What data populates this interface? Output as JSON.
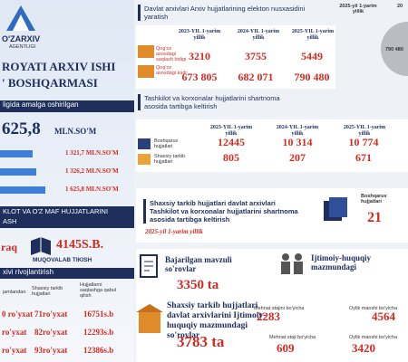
{
  "left": {
    "logo": "O'ZARXIV",
    "logo_sub": "AGENTLIGI",
    "title": [
      "ROYATI ARXIV ISHI",
      "' BOSHQARMASI"
    ],
    "subtitle": "ligida amalga oshirilgan",
    "total": "625,8",
    "total_unit": "MLN.SO'M",
    "bars": [
      "1 321,7 MLN.SO'M",
      "1 326,2 MLN.SO'M",
      "1 625,8 MLN.SO'M"
    ],
    "band1": [
      "KLOT VA O'Z MAF HUJJATLARINI",
      "ASH"
    ],
    "binding": {
      "prefix": "raq",
      "value": "4145S.B.",
      "label": "MUQOVALAB TIKISH"
    },
    "band2": "xivi rivojlantirish",
    "table": {
      "headers": [
        "jamlandan",
        "Shaxsiy tarkib hujjatlari",
        "Hujjatlarni saqlashga qabul qilish"
      ],
      "rows": [
        [
          "0 ro'yxat",
          "71ro'yxat",
          "16751s.b"
        ],
        [
          "ro'yxat",
          "82ro'yxat",
          "12293s.b"
        ],
        [
          "ro'yxat",
          "93ro'yxat",
          "12386s.b"
        ]
      ]
    }
  },
  "digitization": {
    "title": "Davlat arxivlari Arxiv hujjatlarining elekton nusxasidini yaratish",
    "years": [
      "2023-YIL 1-yarim yillik",
      "2024-YIL 1-yarim yillik",
      "2025-YIL 1-yarim yillik"
    ],
    "rows": [
      {
        "label": "Qog'oz asosdagi saqlash birligi",
        "values": [
          "3210",
          "3755",
          "5449"
        ]
      },
      {
        "label": "Qog'oz asosdagi kadr",
        "values": [
          "673 805",
          "682 071",
          "790 480"
        ]
      }
    ],
    "side": {
      "legend": [
        "2025-yil 1-yarim yillik",
        "20"
      ],
      "value": "790 480"
    }
  },
  "contracts": {
    "title": "Tashkilot va korxonalar hujjatlarini shartnoma asosida tartibga keltirish",
    "years": [
      "2023-YIL 1-yarim yillik",
      "2024-YIL 1-yarim yillik",
      "2025-YIL 1-yarim yillik"
    ],
    "rows": [
      {
        "label": "Boshqaruv hujjatlari",
        "values": [
          "12445",
          "10 314",
          "10 774"
        ]
      },
      {
        "label": "Shaxsiy tarkib hujjatlari",
        "values": [
          "805",
          "207",
          "671"
        ]
      }
    ]
  },
  "personnel": {
    "title": "Shaxsiy tarkib hujjatlari davlat arxivlari Tashkilot va korxonalar hujjatlarini shartnoma asosida tartibga keltirish",
    "period": "2025-yil 1-yarim yillik",
    "label": "Boshqaruv hujjatlari",
    "value": "21"
  },
  "requests": {
    "thematic": {
      "label": "Bajarilgan mavzuli so'rovlar",
      "value": "3350 ta"
    },
    "social": {
      "label": "Ijtimoiy-huquqiy mazmundagi",
      "items": [
        {
          "label": "Mehnat stajini bo'yicha",
          "value": "2283"
        },
        {
          "label": "Oylik maoshi bo'yicha",
          "value": "4564"
        }
      ]
    },
    "archives": {
      "label": "Shaxsiy tarkib hujjatlari davlat arxivlarini Ijtimoiy-huquqiy mazmundagi so'rovlar",
      "value": "3783 ta",
      "items": [
        {
          "label": "Mehnat staji bo'yicha",
          "value": "609"
        },
        {
          "label": "Oylik maoshi bo'yicha",
          "value": "3420"
        }
      ]
    }
  }
}
